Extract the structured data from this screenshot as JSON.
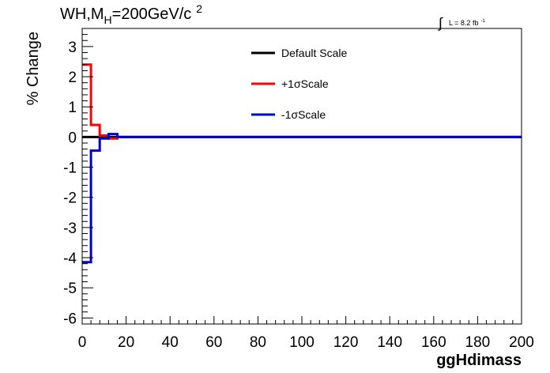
{
  "chart_data": {
    "type": "line",
    "title": {
      "prefix": "WH,M",
      "subscript": "H",
      "main": "=200GeV/c",
      "superscript": "2"
    },
    "lumi": {
      "symbol": "∫",
      "text": "L = 8.2 fb",
      "superscript": "-1"
    },
    "xlabel": "ggHdimass",
    "ylabel": "% Change",
    "xlim": [
      0,
      200
    ],
    "ylim": [
      -6.2,
      3.6
    ],
    "xticks": [
      0,
      20,
      40,
      60,
      80,
      100,
      120,
      140,
      160,
      180,
      200
    ],
    "yticks": [
      -6,
      -5,
      -4,
      -3,
      -2,
      -1,
      0,
      1,
      2,
      3
    ],
    "legend_position": "top-center",
    "series": [
      {
        "name": "Default Scale",
        "color": "#000000",
        "bin_edges": [
          0,
          4,
          200
        ],
        "values": [
          0,
          0
        ]
      },
      {
        "name": "+1σScale",
        "color": "#ff0000",
        "bin_edges": [
          0,
          4,
          8,
          12,
          16,
          200
        ],
        "values": [
          2.4,
          0.4,
          0.05,
          -0.05,
          0
        ]
      },
      {
        "name": "-1σScale",
        "color": "#0000cc",
        "bin_edges": [
          0,
          4,
          8,
          12,
          16,
          200
        ],
        "values": [
          -4.15,
          -0.45,
          -0.05,
          0.1,
          0
        ]
      }
    ]
  }
}
